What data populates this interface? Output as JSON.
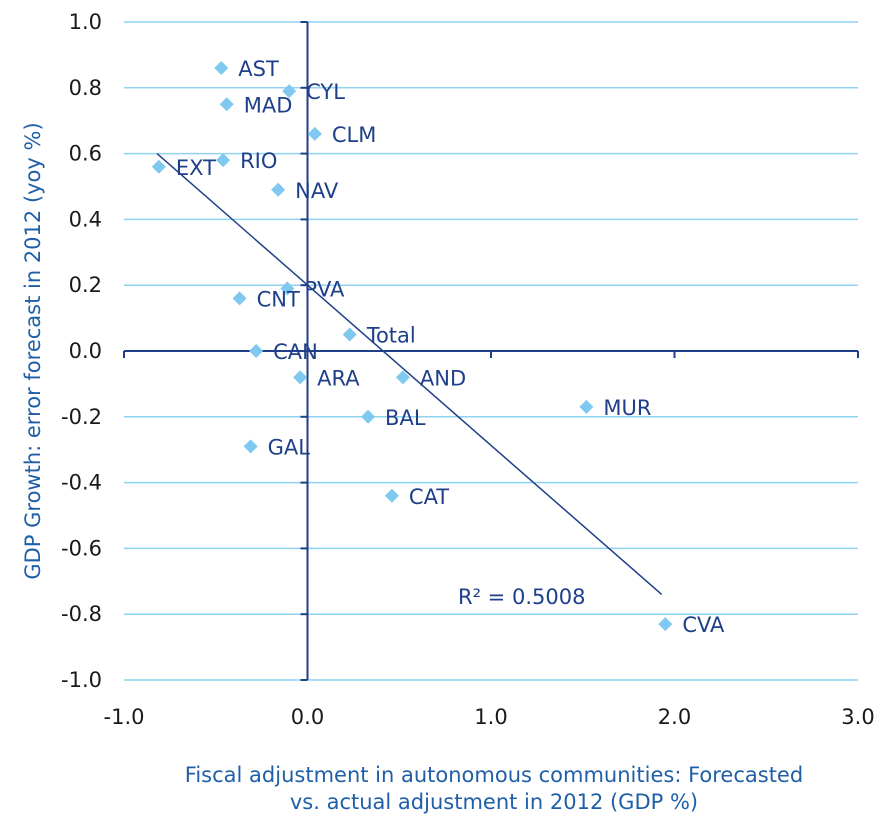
{
  "chart_data": {
    "type": "scatter",
    "title": "",
    "xlabel": [
      "Fiscal adjustment in autonomous communities: Forecasted",
      "vs. actual adjustment in 2012 (GDP %)"
    ],
    "ylabel": "GDP Growth: error forecast in 2012 (yoy %)",
    "xlim": [
      -1.0,
      3.0
    ],
    "ylim": [
      -1.0,
      1.0
    ],
    "xticks": [
      "-1.0",
      "0.0",
      "1.0",
      "2.0",
      "3.0"
    ],
    "yticks": [
      "1.0",
      "0.8",
      "0.6",
      "0.4",
      "0.2",
      "0.0",
      "-0.2",
      "-0.4",
      "-0.6",
      "-0.8",
      "-1.0"
    ],
    "grid": "horizontal",
    "marker_color": "#7fc8ef",
    "trendline_color": "#1f3f8a",
    "points": [
      {
        "label": "AST",
        "x": -0.47,
        "y": 0.86
      },
      {
        "label": "CYL",
        "x": -0.1,
        "y": 0.79
      },
      {
        "label": "MAD",
        "x": -0.44,
        "y": 0.75
      },
      {
        "label": "CLM",
        "x": 0.04,
        "y": 0.66
      },
      {
        "label": "RIO",
        "x": -0.46,
        "y": 0.58
      },
      {
        "label": "EXT",
        "x": -0.81,
        "y": 0.56
      },
      {
        "label": "NAV",
        "x": -0.16,
        "y": 0.49
      },
      {
        "label": "PVA",
        "x": -0.11,
        "y": 0.19
      },
      {
        "label": "CNT",
        "x": -0.37,
        "y": 0.16
      },
      {
        "label": "Total",
        "x": 0.23,
        "y": 0.05
      },
      {
        "label": "CAN",
        "x": -0.28,
        "y": 0.0
      },
      {
        "label": "ARA",
        "x": -0.04,
        "y": -0.08
      },
      {
        "label": "AND",
        "x": 0.52,
        "y": -0.08
      },
      {
        "label": "MUR",
        "x": 1.52,
        "y": -0.17
      },
      {
        "label": "BAL",
        "x": 0.33,
        "y": -0.2
      },
      {
        "label": "GAL",
        "x": -0.31,
        "y": -0.29
      },
      {
        "label": "CAT",
        "x": 0.46,
        "y": -0.44
      },
      {
        "label": "CVA",
        "x": 1.95,
        "y": -0.83
      }
    ],
    "trendline": {
      "x": [
        -0.82,
        1.93
      ],
      "y": [
        0.6,
        -0.74
      ],
      "r2_label": "R² = 0.5008"
    }
  }
}
